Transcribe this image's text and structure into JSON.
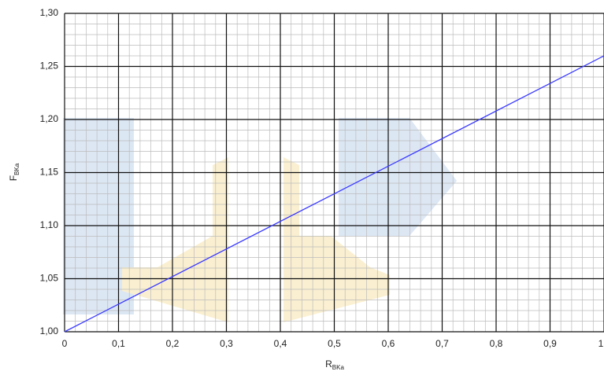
{
  "chart_data": {
    "type": "line",
    "x_label": "R",
    "x_label_sub": "BKa",
    "y_label": "F",
    "y_label_sub": "BKa",
    "x": [
      0,
      1
    ],
    "series": [
      {
        "name": "F",
        "color": "#3a3aff",
        "values": [
          1.0,
          1.26
        ]
      }
    ],
    "xlim": [
      0,
      1
    ],
    "xticks": [
      0,
      {
        "value": 0.1,
        "label": "0,1"
      },
      {
        "value": 0.2,
        "label": "0,2"
      },
      {
        "value": 0.3,
        "label": "0,3"
      },
      {
        "value": 0.4,
        "label": "0,4"
      },
      {
        "value": 0.5,
        "label": "0,5"
      },
      {
        "value": 0.6,
        "label": "0,6"
      },
      {
        "value": 0.7,
        "label": "0,7"
      },
      {
        "value": 0.8,
        "label": "0,8"
      },
      {
        "value": 0.9,
        "label": "0,9"
      },
      1
    ],
    "ylim": [
      1.0,
      1.3
    ],
    "yticks": [
      {
        "value": 1.0,
        "label": "1,00"
      },
      {
        "value": 1.05,
        "label": "1,05"
      },
      {
        "value": 1.1,
        "label": "1,10"
      },
      {
        "value": 1.15,
        "label": "1,15"
      },
      {
        "value": 1.2,
        "label": "1,20"
      },
      {
        "value": 1.25,
        "label": "1,25"
      },
      {
        "value": 1.3,
        "label": "1,30"
      }
    ],
    "grid": true
  }
}
